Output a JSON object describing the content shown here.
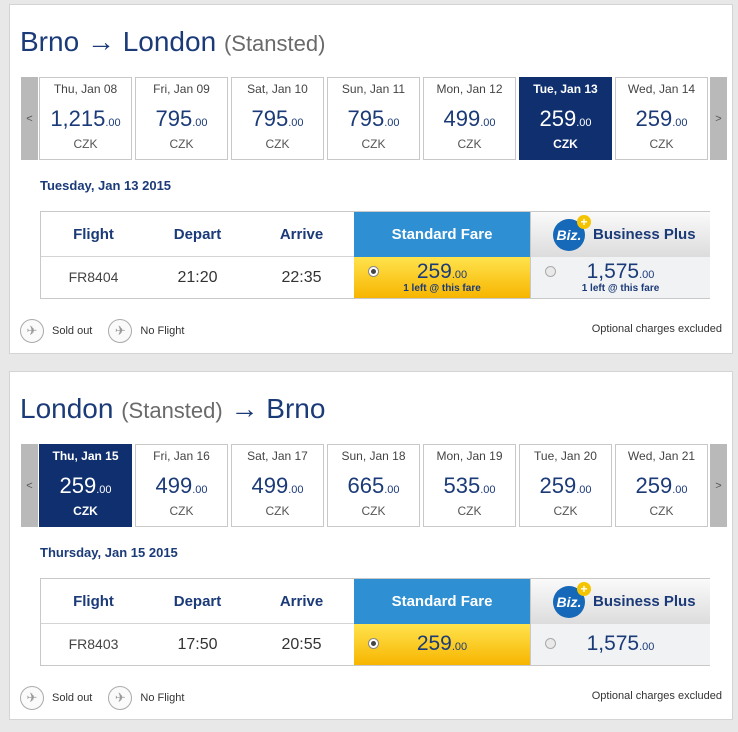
{
  "outbound": {
    "route_from": "Brno",
    "route_arrow": "→",
    "route_to": "London",
    "route_sub": "(Stansted)",
    "prev_label": "<",
    "next_label": ">",
    "days": [
      {
        "label": "Thu, Jan 08",
        "int": "1,215",
        "dec": ".00",
        "cur": "CZK",
        "selected": false
      },
      {
        "label": "Fri, Jan 09",
        "int": "795",
        "dec": ".00",
        "cur": "CZK",
        "selected": false
      },
      {
        "label": "Sat, Jan 10",
        "int": "795",
        "dec": ".00",
        "cur": "CZK",
        "selected": false
      },
      {
        "label": "Sun, Jan 11",
        "int": "795",
        "dec": ".00",
        "cur": "CZK",
        "selected": false
      },
      {
        "label": "Mon, Jan 12",
        "int": "499",
        "dec": ".00",
        "cur": "CZK",
        "selected": false
      },
      {
        "label": "Tue, Jan 13",
        "int": "259",
        "dec": ".00",
        "cur": "CZK",
        "selected": true
      },
      {
        "label": "Wed, Jan 14",
        "int": "259",
        "dec": ".00",
        "cur": "CZK",
        "selected": false
      }
    ],
    "selected_date": "Tuesday, Jan 13 2015",
    "headers": {
      "flight": "Flight",
      "depart": "Depart",
      "arrive": "Arrive",
      "standard": "Standard Fare",
      "business": "Business Plus",
      "biz_logo": "Biz.",
      "biz_plus": "+"
    },
    "flight": {
      "number": "FR8404",
      "depart": "21:20",
      "arrive": "22:35",
      "standard_int": "259",
      "standard_dec": ".00",
      "standard_note": "1 left @ this fare",
      "business_int": "1,575",
      "business_dec": ".00",
      "business_note": "1 left @ this fare"
    },
    "legend": {
      "sold_out": "Sold out",
      "no_flight": "No Flight",
      "charges": "Optional charges excluded"
    }
  },
  "return": {
    "route_from": "London",
    "route_sub": "(Stansted)",
    "route_arrow": "→",
    "route_to": "Brno",
    "prev_label": "<",
    "next_label": ">",
    "days": [
      {
        "label": "Thu, Jan 15",
        "int": "259",
        "dec": ".00",
        "cur": "CZK",
        "selected": true
      },
      {
        "label": "Fri, Jan 16",
        "int": "499",
        "dec": ".00",
        "cur": "CZK",
        "selected": false
      },
      {
        "label": "Sat, Jan 17",
        "int": "499",
        "dec": ".00",
        "cur": "CZK",
        "selected": false
      },
      {
        "label": "Sun, Jan 18",
        "int": "665",
        "dec": ".00",
        "cur": "CZK",
        "selected": false
      },
      {
        "label": "Mon, Jan 19",
        "int": "535",
        "dec": ".00",
        "cur": "CZK",
        "selected": false
      },
      {
        "label": "Tue, Jan 20",
        "int": "259",
        "dec": ".00",
        "cur": "CZK",
        "selected": false
      },
      {
        "label": "Wed, Jan 21",
        "int": "259",
        "dec": ".00",
        "cur": "CZK",
        "selected": false
      }
    ],
    "selected_date": "Thursday, Jan 15 2015",
    "headers": {
      "flight": "Flight",
      "depart": "Depart",
      "arrive": "Arrive",
      "standard": "Standard Fare",
      "business": "Business Plus",
      "biz_logo": "Biz.",
      "biz_plus": "+"
    },
    "flight": {
      "number": "FR8403",
      "depart": "17:50",
      "arrive": "20:55",
      "standard_int": "259",
      "standard_dec": ".00",
      "business_int": "1,575",
      "business_dec": ".00"
    },
    "legend": {
      "sold_out": "Sold out",
      "no_flight": "No Flight",
      "charges": "Optional charges excluded"
    }
  },
  "icons": {
    "sold_out": "sold-out-icon",
    "no_flight": "no-flight-icon"
  },
  "colors": {
    "brand_blue": "#1b3a78",
    "selected_day": "#0f2f6e",
    "standard_header": "#2f8fd3",
    "standard_fare": "#f7b500"
  }
}
